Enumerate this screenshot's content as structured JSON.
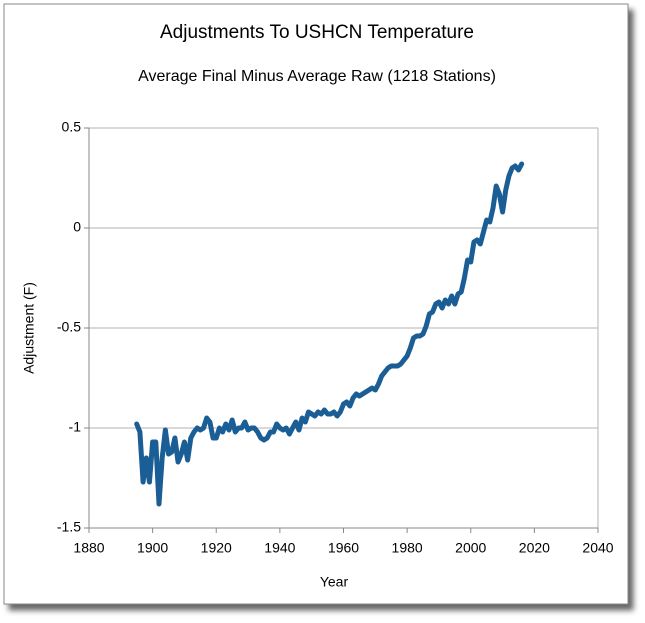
{
  "chart_data": {
    "type": "line",
    "title": "Adjustments To USHCN Temperature",
    "subtitle": "Average Final Minus Average Raw (1218 Stations)",
    "x_label": "Year",
    "y_label": "Adjustment (F)",
    "x": [
      1895,
      1896,
      1897,
      1898,
      1899,
      1900,
      1901,
      1902,
      1903,
      1904,
      1905,
      1906,
      1907,
      1908,
      1909,
      1910,
      1911,
      1912,
      1913,
      1914,
      1915,
      1916,
      1917,
      1918,
      1919,
      1920,
      1921,
      1922,
      1923,
      1924,
      1925,
      1926,
      1927,
      1928,
      1929,
      1930,
      1931,
      1932,
      1933,
      1934,
      1935,
      1936,
      1937,
      1938,
      1939,
      1940,
      1941,
      1942,
      1943,
      1944,
      1945,
      1946,
      1947,
      1948,
      1949,
      1950,
      1951,
      1952,
      1953,
      1954,
      1955,
      1956,
      1957,
      1958,
      1959,
      1960,
      1961,
      1962,
      1963,
      1964,
      1965,
      1966,
      1967,
      1968,
      1969,
      1970,
      1971,
      1972,
      1973,
      1974,
      1975,
      1976,
      1977,
      1978,
      1979,
      1980,
      1981,
      1982,
      1983,
      1984,
      1985,
      1986,
      1987,
      1988,
      1989,
      1990,
      1991,
      1992,
      1993,
      1994,
      1995,
      1996,
      1997,
      1998,
      1999,
      2000,
      2001,
      2002,
      2003,
      2004,
      2005,
      2006,
      2007,
      2008,
      2009,
      2010,
      2011,
      2012,
      2013,
      2014,
      2015,
      2016
    ],
    "series": [
      {
        "name": "Adjustment",
        "color": "#1a5e95",
        "values": [
          -0.98,
          -1.02,
          -1.27,
          -1.15,
          -1.27,
          -1.07,
          -1.07,
          -1.38,
          -1.15,
          -1.01,
          -1.13,
          -1.12,
          -1.05,
          -1.17,
          -1.13,
          -1.07,
          -1.16,
          -1.05,
          -1.02,
          -1.0,
          -1.01,
          -1.0,
          -0.95,
          -0.97,
          -1.05,
          -1.05,
          -1.0,
          -1.02,
          -0.98,
          -1.01,
          -0.96,
          -1.02,
          -1.0,
          -1.0,
          -0.97,
          -1.01,
          -1.0,
          -1.0,
          -1.02,
          -1.05,
          -1.06,
          -1.05,
          -1.02,
          -1.02,
          -0.98,
          -1.0,
          -1.01,
          -1.0,
          -1.03,
          -1.0,
          -0.97,
          -1.01,
          -0.95,
          -0.97,
          -0.92,
          -0.93,
          -0.94,
          -0.92,
          -0.93,
          -0.91,
          -0.93,
          -0.93,
          -0.92,
          -0.94,
          -0.92,
          -0.88,
          -0.87,
          -0.89,
          -0.85,
          -0.83,
          -0.84,
          -0.83,
          -0.82,
          -0.81,
          -0.8,
          -0.81,
          -0.78,
          -0.74,
          -0.72,
          -0.7,
          -0.69,
          -0.69,
          -0.69,
          -0.68,
          -0.66,
          -0.64,
          -0.6,
          -0.55,
          -0.54,
          -0.54,
          -0.53,
          -0.49,
          -0.43,
          -0.42,
          -0.38,
          -0.37,
          -0.4,
          -0.36,
          -0.38,
          -0.34,
          -0.38,
          -0.33,
          -0.32,
          -0.25,
          -0.16,
          -0.17,
          -0.07,
          -0.06,
          -0.08,
          -0.02,
          0.04,
          0.03,
          0.1,
          0.21,
          0.17,
          0.08,
          0.19,
          0.26,
          0.3,
          0.31,
          0.29,
          0.32
        ]
      }
    ],
    "xlim": [
      1880,
      2040
    ],
    "xticks": [
      1880,
      1900,
      1920,
      1940,
      1960,
      1980,
      2000,
      2020,
      2040
    ],
    "ylim": [
      -1.5,
      0.5
    ],
    "yticks": [
      0.5,
      0,
      -0.5,
      -1,
      -1.5
    ],
    "grid": true
  }
}
